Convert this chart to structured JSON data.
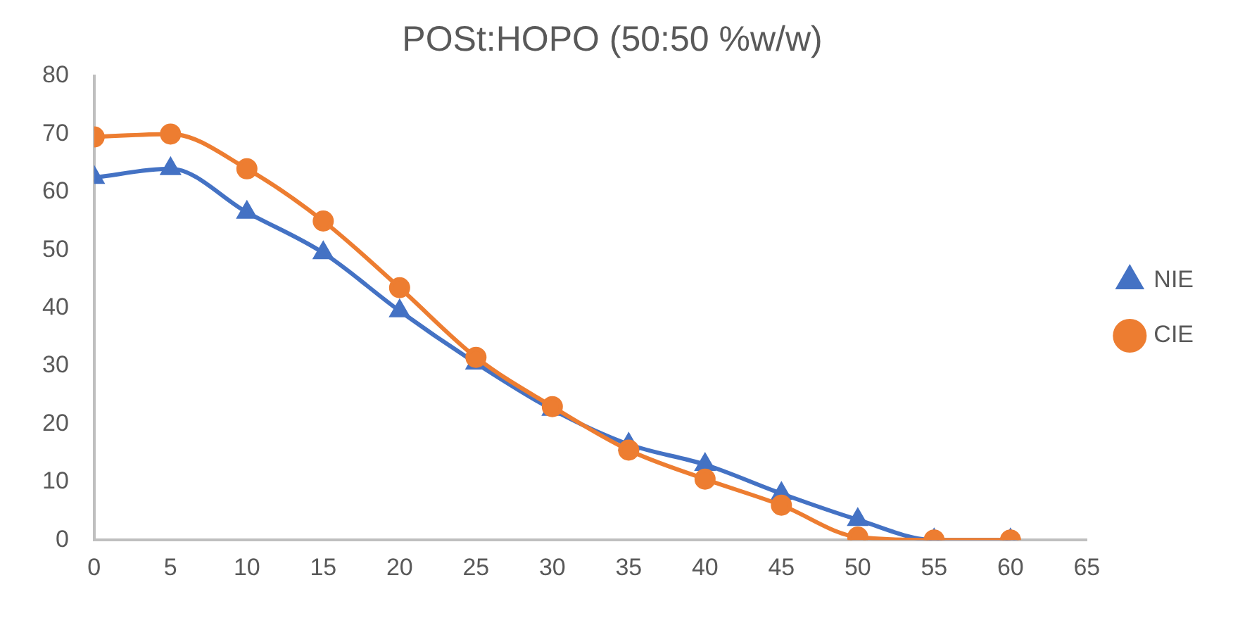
{
  "chart_data": {
    "type": "line",
    "title": "POSt:HOPO (50:50 %w/w)",
    "x": [
      0,
      5,
      10,
      15,
      20,
      25,
      30,
      35,
      40,
      45,
      50,
      55,
      60
    ],
    "series": [
      {
        "name": "NIE",
        "color": "#4472c4",
        "marker": "triangle",
        "values": [
          62.5,
          64,
          56.5,
          49.5,
          39.5,
          30.5,
          22.5,
          16.5,
          13,
          8,
          3.5,
          0,
          0
        ]
      },
      {
        "name": "CIE",
        "color": "#ed7d31",
        "marker": "circle",
        "values": [
          69.5,
          70,
          64,
          55,
          43.5,
          31.5,
          23,
          15.5,
          10.5,
          6,
          0.5,
          0,
          0
        ]
      }
    ],
    "xlim": [
      0,
      65
    ],
    "xticks": [
      0,
      5,
      10,
      15,
      20,
      25,
      30,
      35,
      40,
      45,
      50,
      55,
      60,
      65
    ],
    "ylim": [
      0,
      80
    ],
    "yticks": [
      0,
      10,
      20,
      30,
      40,
      50,
      60,
      70,
      80
    ],
    "grid": false,
    "legend": "right"
  }
}
